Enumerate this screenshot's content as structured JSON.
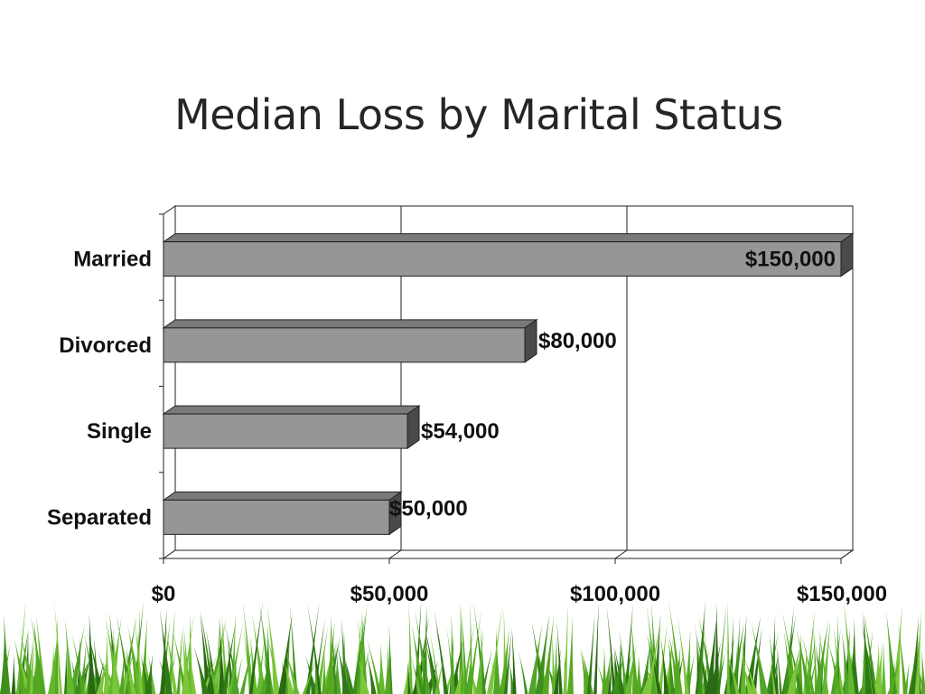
{
  "slide": {
    "title": "Median Loss by Marital Status"
  },
  "chart_data": {
    "type": "bar",
    "orientation": "horizontal",
    "style": "3d",
    "title": "Median Loss by Marital Status",
    "categories": [
      "Married",
      "Divorced",
      "Single",
      "Separated"
    ],
    "values": [
      150000,
      80000,
      54000,
      50000
    ],
    "data_labels": [
      "$150,000",
      "$80,000",
      "$54,000",
      "$50,000"
    ],
    "xlim": [
      0,
      150000
    ],
    "x_ticks": [
      0,
      50000,
      100000,
      150000
    ],
    "x_tick_labels": [
      "$0",
      "$50,000",
      "$100,000",
      "$150,000"
    ],
    "grid": true,
    "legend": false,
    "colors": {
      "bar": "#969696",
      "bar_side": "#4a4a4a",
      "bar_top": "#7a7a7a",
      "grid": "#222222"
    }
  },
  "decoration": {
    "footer_image": "grass-border"
  }
}
